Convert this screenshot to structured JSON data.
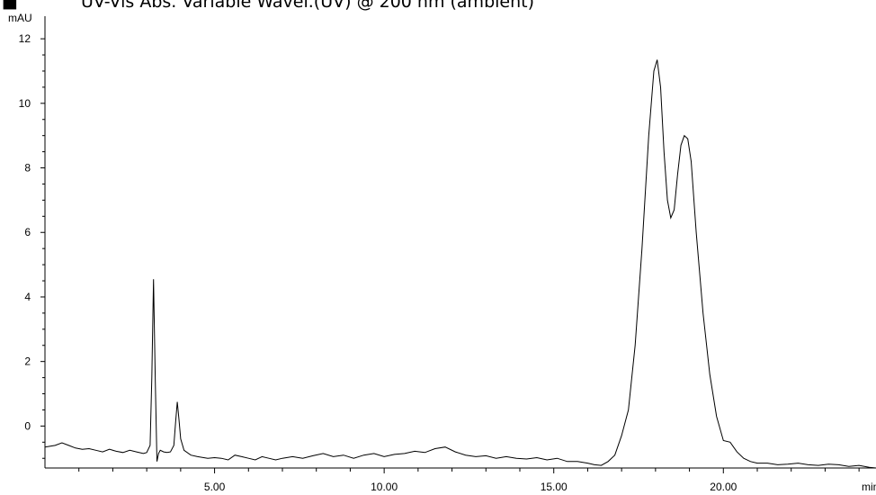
{
  "chart_data": {
    "type": "line",
    "title": "UV-Vis Abs. Variable Wavel.(UV) @ 200 nm (ambient)",
    "title_marker": "■",
    "ylabel": "mAU",
    "xlabel": "min",
    "xlim": [
      0,
      24.5
    ],
    "ylim": [
      -1.3,
      12.7
    ],
    "x_ticks": [
      5,
      10,
      15,
      20
    ],
    "x_tick_labels": [
      "5.00",
      "10.00",
      "15.00",
      "20.00"
    ],
    "y_ticks": [
      0,
      2,
      4,
      6,
      8,
      10,
      12
    ],
    "y_tick_labels": [
      "0",
      "2",
      "4",
      "6",
      "8",
      "10",
      "12"
    ],
    "grid": false,
    "series": [
      {
        "x": [
          0.0,
          0.3,
          0.5,
          0.7,
          0.9,
          1.1,
          1.3,
          1.5,
          1.7,
          1.9,
          2.1,
          2.3,
          2.5,
          2.7,
          2.9,
          3.0,
          3.1,
          3.15,
          3.2,
          3.25,
          3.3,
          3.35,
          3.4,
          3.5,
          3.6,
          3.7,
          3.8,
          3.85,
          3.9,
          3.95,
          4.0,
          4.1,
          4.3,
          4.5,
          4.8,
          5.0,
          5.2,
          5.4,
          5.6,
          5.8,
          6.0,
          6.2,
          6.4,
          6.6,
          6.8,
          7.0,
          7.3,
          7.6,
          7.9,
          8.2,
          8.5,
          8.8,
          9.1,
          9.4,
          9.7,
          10.0,
          10.3,
          10.6,
          10.9,
          11.2,
          11.5,
          11.8,
          12.1,
          12.4,
          12.7,
          13.0,
          13.3,
          13.6,
          13.9,
          14.2,
          14.5,
          14.8,
          15.1,
          15.4,
          15.7,
          16.0,
          16.2,
          16.4,
          16.6,
          16.8,
          17.0,
          17.2,
          17.4,
          17.6,
          17.8,
          17.95,
          18.05,
          18.15,
          18.25,
          18.35,
          18.45,
          18.55,
          18.65,
          18.75,
          18.85,
          18.95,
          19.05,
          19.2,
          19.4,
          19.6,
          19.8,
          20.0,
          20.2,
          20.4,
          20.6,
          20.8,
          21.0,
          21.3,
          21.6,
          21.9,
          22.2,
          22.5,
          22.8,
          23.1,
          23.4,
          23.7,
          24.0,
          24.3,
          24.5
        ],
        "y": [
          -0.65,
          -0.6,
          -0.52,
          -0.6,
          -0.68,
          -0.72,
          -0.7,
          -0.75,
          -0.8,
          -0.72,
          -0.78,
          -0.82,
          -0.75,
          -0.8,
          -0.85,
          -0.82,
          -0.6,
          1.5,
          4.55,
          1.5,
          -1.1,
          -0.85,
          -0.75,
          -0.8,
          -0.82,
          -0.8,
          -0.6,
          0.1,
          0.75,
          0.2,
          -0.4,
          -0.75,
          -0.9,
          -0.95,
          -1.0,
          -0.98,
          -1.0,
          -1.05,
          -0.9,
          -0.95,
          -1.0,
          -1.05,
          -0.95,
          -1.0,
          -1.05,
          -1.0,
          -0.95,
          -1.0,
          -0.92,
          -0.85,
          -0.95,
          -0.9,
          -1.0,
          -0.9,
          -0.85,
          -0.95,
          -0.88,
          -0.85,
          -0.78,
          -0.82,
          -0.7,
          -0.65,
          -0.8,
          -0.9,
          -0.95,
          -0.92,
          -1.0,
          -0.95,
          -1.0,
          -1.02,
          -0.98,
          -1.05,
          -1.0,
          -1.1,
          -1.1,
          -1.15,
          -1.2,
          -1.22,
          -1.1,
          -0.9,
          -0.3,
          0.5,
          2.5,
          5.5,
          9.0,
          11.0,
          11.35,
          10.5,
          8.5,
          7.0,
          6.45,
          6.7,
          7.8,
          8.7,
          9.0,
          8.9,
          8.2,
          6.0,
          3.5,
          1.6,
          0.3,
          -0.45,
          -0.5,
          -0.8,
          -1.0,
          -1.1,
          -1.15,
          -1.15,
          -1.2,
          -1.18,
          -1.15,
          -1.2,
          -1.22,
          -1.18,
          -1.2,
          -1.25,
          -1.22,
          -1.28,
          -1.3
        ]
      }
    ]
  }
}
